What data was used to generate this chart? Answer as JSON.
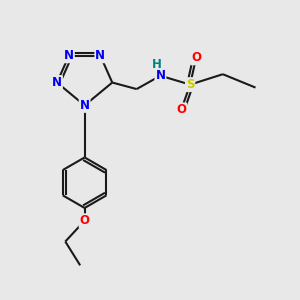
{
  "bg_color": "#e8e8e8",
  "bond_color": "#1a1a1a",
  "bond_width": 1.5,
  "N_color": "#0000ee",
  "O_color": "#ff0000",
  "S_color": "#cccc00",
  "H_color": "#008080",
  "font_size": 8.5,
  "xlim": [
    0,
    10
  ],
  "ylim": [
    0,
    10
  ]
}
